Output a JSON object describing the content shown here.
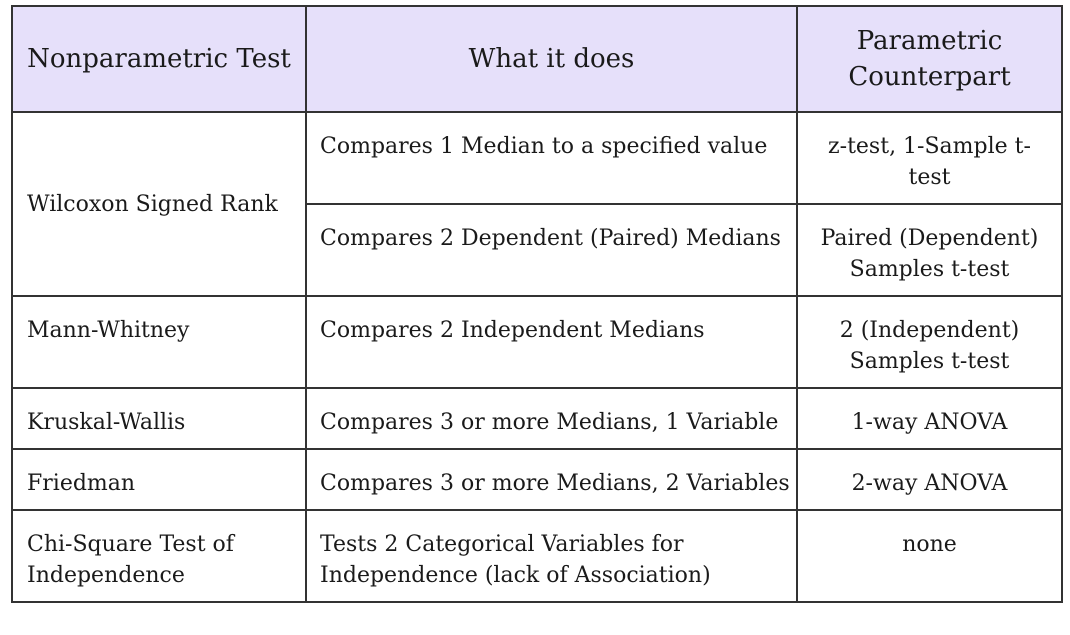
{
  "headers": [
    "Nonparametric Test",
    "What it does",
    "Parametric Counterpart"
  ],
  "rows": [
    {
      "test": "Wilcoxon Signed Rank",
      "does": "Compares 1 Median to a specified value",
      "counterpart": "z-test, 1-Sample t-test"
    },
    {
      "test": "",
      "does": "Compares 2 Dependent (Paired) Medians",
      "counterpart": "Paired (Dependent) Samples t-test"
    },
    {
      "test": "Mann-Whitney",
      "does": "Compares 2 Independent Medians",
      "counterpart": "2 (Independent) Samples t-test"
    },
    {
      "test": "Kruskal-Wallis",
      "does": "Compares 3 or more Medians, 1 Variable",
      "counterpart": "1-way ANOVA"
    },
    {
      "test": "Friedman",
      "does": "Compares 3 or more Medians, 2 Variables",
      "counterpart": "2-way ANOVA"
    },
    {
      "test": "Chi-Square Test of Independence",
      "does": "Tests 2 Categorical Variables for Independence (lack of Association)",
      "counterpart": "none"
    }
  ]
}
